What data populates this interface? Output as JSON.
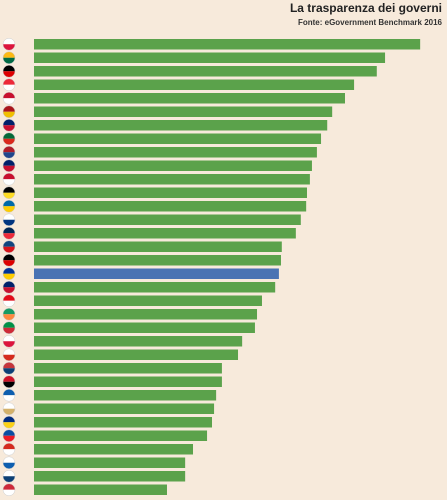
{
  "chart_data": {
    "type": "bar",
    "orientation": "horizontal",
    "title": "La trasparenza dei governi",
    "subtitle": "Fonte: eGovernment Benchmark 2016",
    "values": [
      93.5,
      85,
      83,
      77.5,
      75.3,
      72.2,
      71,
      69.5,
      68.5,
      67.3,
      66.8,
      66.1,
      65.9,
      64.6,
      63.4,
      60,
      59.8,
      59.3,
      58.4,
      55.2,
      54,
      53.5,
      50.4,
      49.4,
      45.5,
      45.5,
      44.1,
      43.6,
      43.1,
      41.9,
      38.5,
      36.6,
      36.6,
      32.2
    ],
    "colors": [
      "#5ba24b",
      "#5ba24b",
      "#5ba24b",
      "#5ba24b",
      "#5ba24b",
      "#5ba24b",
      "#5ba24b",
      "#5ba24b",
      "#5ba24b",
      "#5ba24b",
      "#5ba24b",
      "#5ba24b",
      "#5ba24b",
      "#5ba24b",
      "#5ba24b",
      "#5ba24b",
      "#5ba24b",
      "#4a73b3",
      "#5ba24b",
      "#5ba24b",
      "#5ba24b",
      "#5ba24b",
      "#5ba24b",
      "#5ba24b",
      "#5ba24b",
      "#5ba24b",
      "#5ba24b",
      "#5ba24b",
      "#5ba24b",
      "#5ba24b",
      "#5ba24b",
      "#5ba24b",
      "#5ba24b",
      "#5ba24b"
    ],
    "xlim": [
      0,
      100
    ]
  }
}
